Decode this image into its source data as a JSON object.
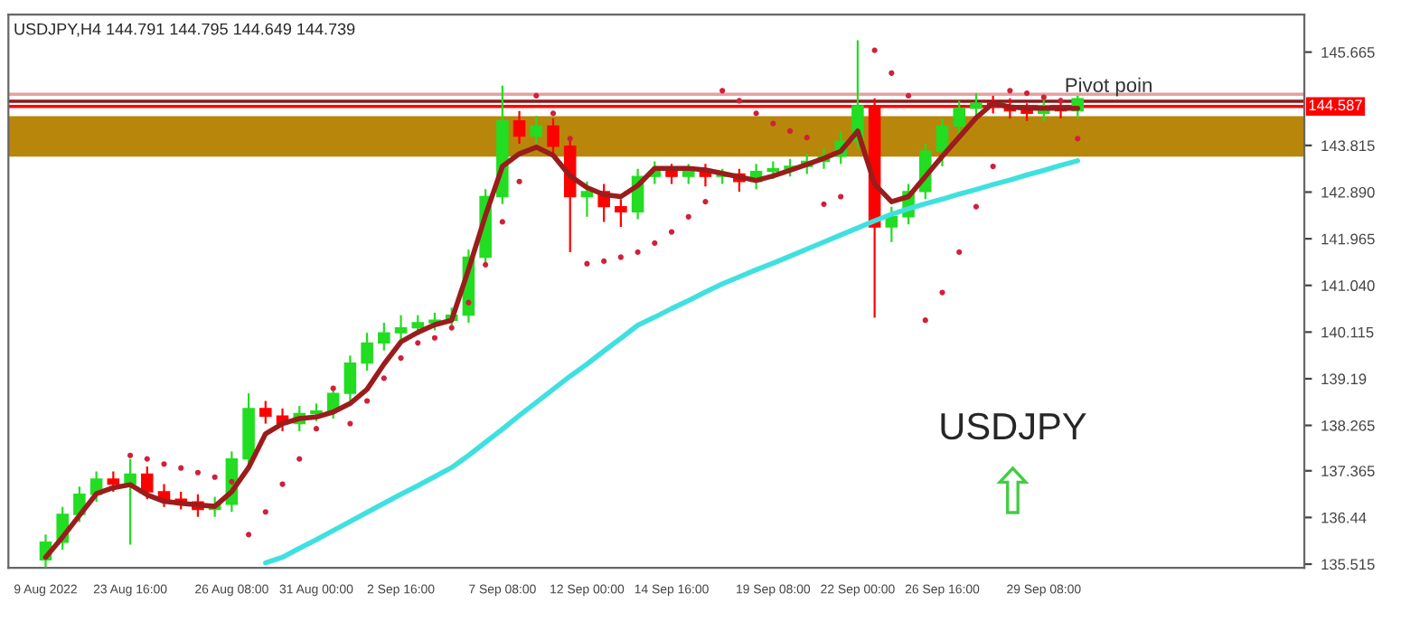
{
  "chart_data": {
    "type": "candlestick",
    "annotations": [
      "USDJPY,H4 144.791 144.795 144.649 144.739",
      "USDJPY"
    ],
    "categories": [
      "9 Aug 2022",
      null,
      null,
      null,
      null,
      "23 Aug 16:00",
      null,
      null,
      null,
      null,
      null,
      "26 Aug 08:00",
      null,
      null,
      null,
      null,
      "31 Aug 00:00",
      null,
      null,
      null,
      null,
      "2 Sep 16:00",
      null,
      null,
      null,
      null,
      null,
      "7 Sep 08:00",
      null,
      null,
      null,
      null,
      "12 Sep 00:00",
      null,
      null,
      null,
      null,
      "14 Sep 16:00",
      null,
      null,
      null,
      null,
      null,
      "19 Sep 08:00",
      null,
      null,
      null,
      null,
      "22 Sep 00:00",
      null,
      null,
      null,
      null,
      "26 Sep 16:00",
      null,
      null,
      null,
      null,
      null,
      "29 Sep 08:00",
      null,
      null
    ],
    "ohlc": [
      [
        135.6,
        136.1,
        135.45,
        135.95
      ],
      [
        135.95,
        136.65,
        135.8,
        136.5
      ],
      [
        136.5,
        137.05,
        136.35,
        136.9
      ],
      [
        136.9,
        137.35,
        136.75,
        137.2
      ],
      [
        137.2,
        137.35,
        136.95,
        137.1
      ],
      [
        137.1,
        137.6,
        135.9,
        137.3
      ],
      [
        137.3,
        137.45,
        136.8,
        136.95
      ],
      [
        136.95,
        137.1,
        136.65,
        136.8
      ],
      [
        136.8,
        136.95,
        136.6,
        136.75
      ],
      [
        136.75,
        136.9,
        136.45,
        136.6
      ],
      [
        136.6,
        136.85,
        136.45,
        136.7
      ],
      [
        136.7,
        137.75,
        136.55,
        137.6
      ],
      [
        137.6,
        138.9,
        137.45,
        138.6
      ],
      [
        138.6,
        138.75,
        138.3,
        138.45
      ],
      [
        138.45,
        138.6,
        138.15,
        138.3
      ],
      [
        138.3,
        138.65,
        138.15,
        138.5
      ],
      [
        138.5,
        138.7,
        138.35,
        138.55
      ],
      [
        138.55,
        139.05,
        138.4,
        138.9
      ],
      [
        138.9,
        139.65,
        138.75,
        139.5
      ],
      [
        139.5,
        140.1,
        139.35,
        139.9
      ],
      [
        139.9,
        140.3,
        139.75,
        140.1
      ],
      [
        140.1,
        140.45,
        139.95,
        140.2
      ],
      [
        140.2,
        140.45,
        140.05,
        140.3
      ],
      [
        140.3,
        140.5,
        140.15,
        140.35
      ],
      [
        140.35,
        140.6,
        140.2,
        140.45
      ],
      [
        140.45,
        141.75,
        140.3,
        141.6
      ],
      [
        141.6,
        142.95,
        141.45,
        142.8
      ],
      [
        142.8,
        145.0,
        142.65,
        144.3
      ],
      [
        144.3,
        144.5,
        143.85,
        144.0
      ],
      [
        144.0,
        144.4,
        143.85,
        144.2
      ],
      [
        144.2,
        144.35,
        143.65,
        143.8
      ],
      [
        143.8,
        143.95,
        141.7,
        142.8
      ],
      [
        142.8,
        143.1,
        142.4,
        142.9
      ],
      [
        142.9,
        143.05,
        142.3,
        142.6
      ],
      [
        142.6,
        142.75,
        142.2,
        142.5
      ],
      [
        142.5,
        143.35,
        142.35,
        143.2
      ],
      [
        143.2,
        143.5,
        143.05,
        143.3
      ],
      [
        143.3,
        143.45,
        143.05,
        143.2
      ],
      [
        143.2,
        143.45,
        143.05,
        143.3
      ],
      [
        143.3,
        143.45,
        143.0,
        143.2
      ],
      [
        143.2,
        143.35,
        143.05,
        143.25
      ],
      [
        143.25,
        143.35,
        142.9,
        143.1
      ],
      [
        143.1,
        143.45,
        142.95,
        143.3
      ],
      [
        143.3,
        143.5,
        143.15,
        143.35
      ],
      [
        143.35,
        143.55,
        143.2,
        143.4
      ],
      [
        143.4,
        143.65,
        143.25,
        143.5
      ],
      [
        143.5,
        143.75,
        143.35,
        143.6
      ],
      [
        143.6,
        144.1,
        143.45,
        143.9
      ],
      [
        143.9,
        145.9,
        143.75,
        144.6
      ],
      [
        144.6,
        144.75,
        140.4,
        142.2
      ],
      [
        142.2,
        142.6,
        141.9,
        142.4
      ],
      [
        142.4,
        143.05,
        142.25,
        142.9
      ],
      [
        142.9,
        143.85,
        142.75,
        143.7
      ],
      [
        143.7,
        144.35,
        143.4,
        144.2
      ],
      [
        144.2,
        144.7,
        144.05,
        144.55
      ],
      [
        144.55,
        144.85,
        144.4,
        144.65
      ],
      [
        144.65,
        144.8,
        144.45,
        144.6
      ],
      [
        144.6,
        144.75,
        144.35,
        144.5
      ],
      [
        144.5,
        144.65,
        144.3,
        144.45
      ],
      [
        144.45,
        144.75,
        144.3,
        144.6
      ],
      [
        144.6,
        144.75,
        144.35,
        144.5
      ],
      [
        144.5,
        144.8,
        144.35,
        144.74
      ]
    ],
    "colors": [
      "#22dd22",
      "#22dd22",
      "#22dd22",
      "#22dd22",
      "#ff0000",
      "#22dd22",
      "#ff0000",
      "#ff0000",
      "#ff0000",
      "#ff0000",
      "#22dd22",
      "#22dd22",
      "#22dd22",
      "#ff0000",
      "#ff0000",
      "#22dd22",
      "#22dd22",
      "#22dd22",
      "#22dd22",
      "#22dd22",
      "#22dd22",
      "#22dd22",
      "#22dd22",
      "#22dd22",
      "#22dd22",
      "#22dd22",
      "#22dd22",
      "#22dd22",
      "#ff0000",
      "#22dd22",
      "#ff0000",
      "#ff0000",
      "#22dd22",
      "#ff0000",
      "#ff0000",
      "#22dd22",
      "#22dd22",
      "#ff0000",
      "#22dd22",
      "#ff0000",
      "#22dd22",
      "#ff0000",
      "#22dd22",
      "#22dd22",
      "#22dd22",
      "#22dd22",
      "#22dd22",
      "#22dd22",
      "#22dd22",
      "#ff0000",
      "#22dd22",
      "#22dd22",
      "#22dd22",
      "#22dd22",
      "#22dd22",
      "#22dd22",
      "#ff0000",
      "#ff0000",
      "#ff0000",
      "#22dd22",
      "#ff0000",
      "#22dd22"
    ],
    "series": [
      {
        "type": "line",
        "color": "#9b1c1c",
        "values": [
          135.65,
          136.05,
          136.48,
          136.91,
          137.03,
          137.09,
          136.89,
          136.76,
          136.72,
          136.69,
          136.66,
          136.95,
          137.43,
          138.1,
          138.3,
          138.4,
          138.43,
          138.53,
          138.7,
          138.98,
          139.48,
          139.92,
          140.11,
          140.26,
          140.35,
          141.36,
          142.43,
          143.4,
          143.65,
          143.78,
          143.62,
          143.21,
          142.98,
          142.84,
          142.8,
          143.02,
          143.36,
          143.36,
          143.36,
          143.33,
          143.26,
          143.19,
          143.12,
          143.21,
          143.32,
          143.44,
          143.56,
          143.7,
          144.1,
          143.05,
          142.7,
          142.8,
          143.2,
          143.6,
          143.98,
          144.36,
          144.65,
          144.58,
          144.55,
          144.55,
          144.55,
          144.55
        ]
      },
      {
        "type": "line",
        "color": "#40e0e0",
        "values": [
          null,
          null,
          null,
          null,
          null,
          null,
          null,
          null,
          null,
          null,
          null,
          null,
          null,
          135.54,
          135.65,
          135.83,
          136.0,
          136.18,
          136.36,
          136.54,
          136.72,
          136.9,
          137.07,
          137.25,
          137.43,
          137.67,
          137.93,
          138.19,
          138.46,
          138.72,
          138.98,
          139.24,
          139.48,
          139.74,
          139.99,
          140.25,
          140.41,
          140.58,
          140.74,
          140.91,
          141.07,
          141.21,
          141.35,
          141.48,
          141.62,
          141.76,
          141.9,
          142.04,
          142.18,
          142.32,
          142.45,
          142.56,
          142.66,
          142.75,
          142.85,
          142.94,
          143.04,
          143.13,
          143.23,
          143.32,
          143.42,
          143.51
        ]
      },
      {
        "type": "scatter",
        "color": "#d0203a",
        "marker": "circle",
        "values": [
          null,
          null,
          null,
          null,
          null,
          137.67,
          137.6,
          137.5,
          137.42,
          137.33,
          137.24,
          137.15,
          136.1,
          136.55,
          137.1,
          137.6,
          138.2,
          139.0,
          138.3,
          138.75,
          139.2,
          139.6,
          139.9,
          140.0,
          140.2,
          140.7,
          141.45,
          142.3,
          143.1,
          144.8,
          144.45,
          143.95,
          141.47,
          141.52,
          141.6,
          141.7,
          141.88,
          142.1,
          142.4,
          142.7,
          144.9,
          144.7,
          144.45,
          144.25,
          144.1,
          143.97,
          142.65,
          142.8,
          null,
          145.7,
          145.25,
          144.8,
          140.35,
          140.9,
          141.7,
          142.6,
          143.4,
          144.9,
          144.85,
          144.77,
          144.7,
          143.95
        ]
      }
    ],
    "bands": [
      {
        "axis": "y",
        "from": 143.62,
        "to": 144.37,
        "color": "#b8860b"
      }
    ],
    "ref_lines": [
      {
        "axis": "y",
        "value": 144.83,
        "color": "#e8a0a0"
      },
      {
        "axis": "y",
        "value": 144.69,
        "color": "#8b1a1a",
        "label": "Pivot poin"
      },
      {
        "axis": "y",
        "value": 144.587,
        "color": "#ff0000",
        "label": "144.587"
      }
    ],
    "ylim": [
      135.44,
      146.41
    ],
    "yticks": [
      135.515,
      136.44,
      137.365,
      138.265,
      139.19,
      140.115,
      {
        "value": 141.04,
        "label": "141.040"
      },
      141.965,
      {
        "value": 142.89,
        "label": "142.890"
      },
      143.815,
      145.665
    ],
    "grid": false,
    "legend": false
  }
}
